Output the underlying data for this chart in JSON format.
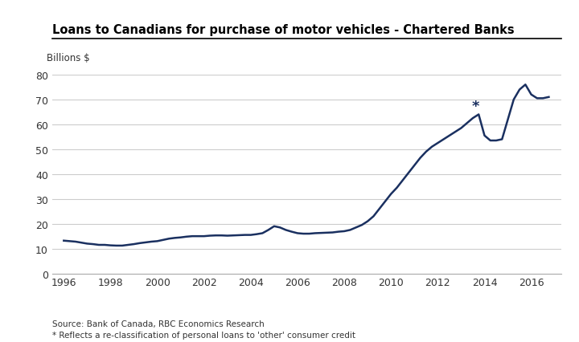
{
  "title": "Loans to Canadians for purchase of motor vehicles - Chartered Banks",
  "ylabel": "Billions $",
  "line_color": "#1a3060",
  "line_width": 1.8,
  "background_color": "#ffffff",
  "grid_color": "#cccccc",
  "ylim": [
    0,
    80
  ],
  "yticks": [
    0,
    10,
    20,
    30,
    40,
    50,
    60,
    70,
    80
  ],
  "xticks": [
    1996,
    1998,
    2000,
    2002,
    2004,
    2006,
    2008,
    2010,
    2012,
    2014,
    2016
  ],
  "source_text": "Source: Bank of Canada, RBC Economics Research\n* Reflects a re-classification of personal loans to 'other' consumer credit",
  "star_x": 2013.6,
  "star_y": 67.5,
  "x": [
    1996.0,
    1996.25,
    1996.5,
    1996.75,
    1997.0,
    1997.25,
    1997.5,
    1997.75,
    1998.0,
    1998.25,
    1998.5,
    1998.75,
    1999.0,
    1999.25,
    1999.5,
    1999.75,
    2000.0,
    2000.25,
    2000.5,
    2000.75,
    2001.0,
    2001.25,
    2001.5,
    2001.75,
    2002.0,
    2002.25,
    2002.5,
    2002.75,
    2003.0,
    2003.25,
    2003.5,
    2003.75,
    2004.0,
    2004.25,
    2004.5,
    2004.75,
    2005.0,
    2005.25,
    2005.5,
    2005.75,
    2006.0,
    2006.25,
    2006.5,
    2006.75,
    2007.0,
    2007.25,
    2007.5,
    2007.75,
    2008.0,
    2008.25,
    2008.5,
    2008.75,
    2009.0,
    2009.25,
    2009.5,
    2009.75,
    2010.0,
    2010.25,
    2010.5,
    2010.75,
    2011.0,
    2011.25,
    2011.5,
    2011.75,
    2012.0,
    2012.25,
    2012.5,
    2012.75,
    2013.0,
    2013.25,
    2013.5,
    2013.75,
    2014.0,
    2014.25,
    2014.5,
    2014.75,
    2015.0,
    2015.25,
    2015.5,
    2015.75,
    2016.0,
    2016.25,
    2016.5,
    2016.75
  ],
  "y": [
    13.2,
    13.0,
    12.8,
    12.4,
    12.0,
    11.8,
    11.5,
    11.5,
    11.3,
    11.2,
    11.2,
    11.5,
    11.8,
    12.2,
    12.5,
    12.8,
    13.0,
    13.5,
    14.0,
    14.3,
    14.5,
    14.8,
    15.0,
    15.0,
    15.0,
    15.2,
    15.3,
    15.3,
    15.2,
    15.3,
    15.4,
    15.5,
    15.5,
    15.8,
    16.2,
    17.5,
    19.0,
    18.5,
    17.5,
    16.8,
    16.2,
    16.0,
    16.0,
    16.2,
    16.3,
    16.4,
    16.5,
    16.8,
    17.0,
    17.5,
    18.5,
    19.5,
    21.0,
    23.0,
    26.0,
    29.0,
    32.0,
    34.5,
    37.5,
    40.5,
    43.5,
    46.5,
    49.0,
    51.0,
    52.5,
    54.0,
    55.5,
    57.0,
    58.5,
    60.5,
    62.5,
    64.0,
    55.5,
    53.5,
    53.5,
    54.0,
    62.0,
    70.0,
    74.0,
    76.0,
    72.0,
    70.5,
    70.5,
    71.0
  ]
}
